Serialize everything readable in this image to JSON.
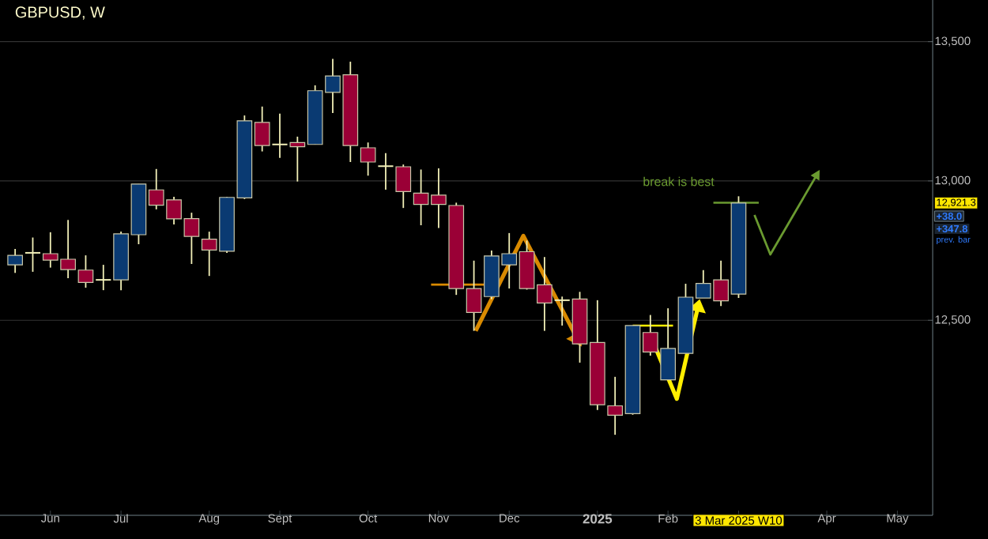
{
  "chart_data": {
    "type": "candlestick",
    "title": "GBPUSD, W",
    "x": [
      "2024-05-20",
      "2024-05-27",
      "2024-06-03",
      "2024-06-10",
      "2024-06-17",
      "2024-06-24",
      "2024-07-01",
      "2024-07-08",
      "2024-07-15",
      "2024-07-22",
      "2024-07-29",
      "2024-08-05",
      "2024-08-12",
      "2024-08-19",
      "2024-08-26",
      "2024-09-02",
      "2024-09-09",
      "2024-09-16",
      "2024-09-23",
      "2024-09-30",
      "2024-10-07",
      "2024-10-14",
      "2024-10-21",
      "2024-10-28",
      "2024-11-04",
      "2024-11-11",
      "2024-11-18",
      "2024-11-25",
      "2024-12-02",
      "2024-12-09",
      "2024-12-16",
      "2024-12-23",
      "2024-12-30",
      "2025-01-06",
      "2025-01-13",
      "2025-01-20",
      "2025-01-27",
      "2025-02-03",
      "2025-02-10",
      "2025-02-17",
      "2025-02-24",
      "2025-03-03"
    ],
    "ohlc": [
      [
        12699,
        12756,
        12670,
        12733
      ],
      [
        12742,
        12797,
        12674,
        12742
      ],
      [
        12739,
        12816,
        12689,
        12716
      ],
      [
        12719,
        12860,
        12651,
        12682
      ],
      [
        12680,
        12733,
        12617,
        12636
      ],
      [
        12645,
        12699,
        12608,
        12645
      ],
      [
        12645,
        12818,
        12608,
        12810
      ],
      [
        12807,
        12989,
        12773,
        12989
      ],
      [
        12968,
        13043,
        12898,
        12913
      ],
      [
        12932,
        12943,
        12844,
        12864
      ],
      [
        12865,
        12886,
        12702,
        12801
      ],
      [
        12791,
        12818,
        12659,
        12752
      ],
      [
        12748,
        12943,
        12742,
        12941
      ],
      [
        12939,
        13235,
        12935,
        13216
      ],
      [
        13210,
        13267,
        13106,
        13127
      ],
      [
        13131,
        13242,
        13083,
        13131
      ],
      [
        13138,
        13159,
        12998,
        13123
      ],
      [
        13131,
        13343,
        13131,
        13324
      ],
      [
        13318,
        13438,
        13244,
        13377
      ],
      [
        13381,
        13428,
        13068,
        13127
      ],
      [
        13119,
        13138,
        13019,
        13068
      ],
      [
        13053,
        13100,
        12969,
        13053
      ],
      [
        13051,
        13059,
        12903,
        12962
      ],
      [
        12956,
        13041,
        12841,
        12916
      ],
      [
        12949,
        13045,
        12831,
        12916
      ],
      [
        12912,
        12922,
        12591,
        12614
      ],
      [
        12614,
        12714,
        12462,
        12528
      ],
      [
        12585,
        12750,
        12576,
        12731
      ],
      [
        12699,
        12813,
        12614,
        12739
      ],
      [
        12746,
        12786,
        12610,
        12614
      ],
      [
        12627,
        12727,
        12462,
        12562
      ],
      [
        12572,
        12585,
        12481,
        12572
      ],
      [
        12576,
        12602,
        12348,
        12415
      ],
      [
        12420,
        12572,
        12178,
        12197
      ],
      [
        12193,
        12297,
        12089,
        12159
      ],
      [
        12165,
        12481,
        12161,
        12481
      ],
      [
        12456,
        12519,
        12373,
        12386
      ],
      [
        12286,
        12543,
        12286,
        12399
      ],
      [
        12381,
        12631,
        12381,
        12583
      ],
      [
        12580,
        12680,
        12580,
        12632
      ],
      [
        12645,
        12714,
        12551,
        12570
      ],
      [
        12594,
        12945,
        12580,
        12921
      ]
    ],
    "xlim": [
      "2024-05-14",
      "2025-05-19"
    ],
    "xticks": [
      {
        "value": "2024-06-03",
        "label": "Jun"
      },
      {
        "value": "2024-07-01",
        "label": "Jul"
      },
      {
        "value": "2024-08-05",
        "label": "Aug"
      },
      {
        "value": "2024-09-02",
        "label": "Sept"
      },
      {
        "value": "2024-10-07",
        "label": "Oct"
      },
      {
        "value": "2024-11-04",
        "label": "Nov"
      },
      {
        "value": "2024-12-02",
        "label": "Dec"
      },
      {
        "value": "2025-01-06",
        "label": "2025"
      },
      {
        "value": "2025-02-03",
        "label": "Feb"
      },
      {
        "value": "2025-03-03",
        "label": "3 Mar 2025 W10"
      },
      {
        "value": "2025-04-07",
        "label": "Apr"
      },
      {
        "value": "2025-05-05",
        "label": "May"
      }
    ],
    "ylim": [
      11800,
      13655
    ],
    "yticks": [
      {
        "value": 12500,
        "label": "12,500"
      },
      {
        "value": 13000,
        "label": "13,000"
      },
      {
        "value": 13500,
        "label": "13,500"
      }
    ],
    "series": [
      {
        "type": "line",
        "x": [
          "2024-11-01",
          "2024-11-22"
        ],
        "values": [
          12628,
          12628
        ],
        "color": "#d98a00"
      },
      {
        "type": "line",
        "x": [
          "2025-01-20",
          "2025-02-05"
        ],
        "values": [
          12481,
          12481
        ],
        "color": "#ffee00"
      },
      {
        "type": "line",
        "x": [
          "2025-02-21",
          "2025-03-11"
        ],
        "values": [
          12922,
          12922
        ],
        "color": "#6a9a30"
      }
    ],
    "grid": "y",
    "annotations": [
      "break is best",
      "12,921.3",
      "+38.0",
      "+347.8",
      "prev. bar"
    ]
  }
}
